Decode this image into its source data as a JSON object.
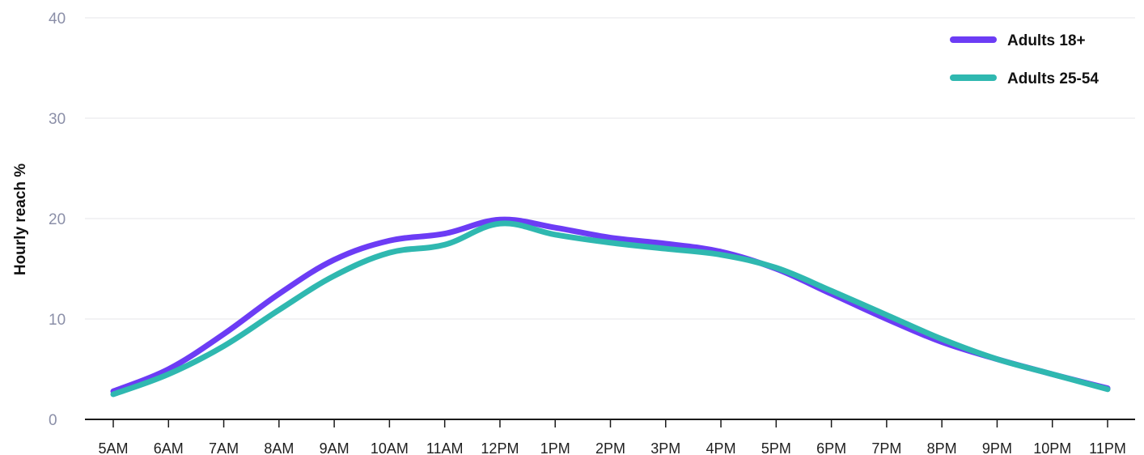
{
  "chart_data": {
    "type": "line",
    "title": "",
    "xlabel": "",
    "ylabel": "Hourly reach %",
    "ylim": [
      0,
      40
    ],
    "yticks": [
      "0",
      "10",
      "20",
      "30",
      "40"
    ],
    "grid": true,
    "legend_position": "top-right",
    "categories": [
      "5AM",
      "6AM",
      "7AM",
      "8AM",
      "9AM",
      "10AM",
      "11AM",
      "12PM",
      "1PM",
      "2PM",
      "3PM",
      "4PM",
      "5PM",
      "6PM",
      "7PM",
      "8PM",
      "9PM",
      "10PM",
      "11PM"
    ],
    "series": [
      {
        "name": "Adults 18+",
        "color": "#6c3cf5",
        "values": [
          2.8,
          5.0,
          8.5,
          12.5,
          15.9,
          17.8,
          18.5,
          19.9,
          19.1,
          18.1,
          17.5,
          16.7,
          15.0,
          12.5,
          10.0,
          7.7,
          6.0,
          4.5,
          3.1
        ]
      },
      {
        "name": "Adults 25-54",
        "color": "#2fb8b0",
        "values": [
          2.5,
          4.5,
          7.3,
          10.9,
          14.3,
          16.6,
          17.4,
          19.5,
          18.4,
          17.6,
          17.0,
          16.4,
          15.1,
          12.8,
          10.4,
          8.0,
          6.0,
          4.5,
          3.0
        ]
      }
    ]
  }
}
